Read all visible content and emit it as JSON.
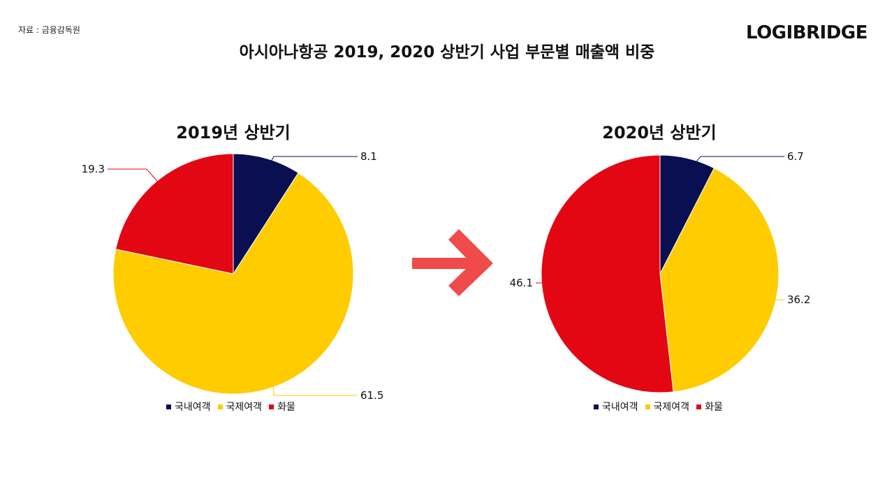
{
  "header": {
    "source": "자료 : 금융감독원",
    "brand": "LOGIBRIDGE",
    "title": "아시아나항공 2019, 2020 상반기 사업 부문별 매출액 비중"
  },
  "colors": {
    "국내여객": "#0a0f52",
    "국제여객": "#ffcc00",
    "화물": "#e30613",
    "arrow": "#ef4b4b"
  },
  "chart_data": [
    {
      "type": "pie",
      "title": "2019년 상반기",
      "categories": [
        "국내여객",
        "국제여객",
        "화물"
      ],
      "values": [
        8.1,
        61.5,
        19.3
      ],
      "legend": "bottom"
    },
    {
      "type": "pie",
      "title": "2020년 상반기",
      "categories": [
        "국내여객",
        "국제여객",
        "화물"
      ],
      "values": [
        6.7,
        36.2,
        46.1
      ],
      "legend": "bottom"
    }
  ]
}
